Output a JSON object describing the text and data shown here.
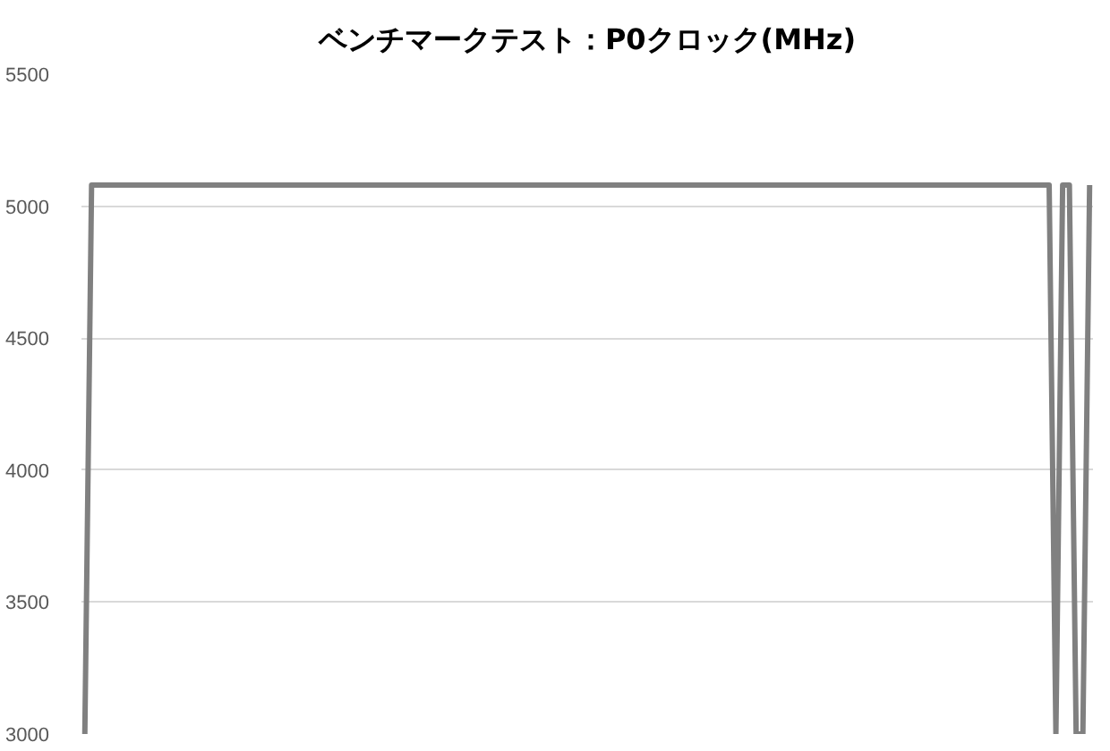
{
  "chart_data": {
    "type": "line",
    "title": "ベンチマークテスト：P0クロック(MHz)",
    "categories": [
      null,
      null,
      null,
      null,
      null,
      null,
      null,
      null,
      null,
      null,
      null,
      null,
      null,
      null,
      null,
      null,
      null,
      null,
      null,
      null,
      null,
      null,
      null,
      null,
      null,
      null,
      null,
      null,
      null,
      null,
      null,
      null,
      null,
      null,
      null,
      null,
      null,
      null,
      null,
      null,
      null,
      null,
      null,
      null,
      null,
      null,
      null,
      null,
      null,
      null,
      null,
      null,
      null,
      null,
      null,
      null,
      null,
      null,
      null,
      null,
      null,
      null,
      null,
      null,
      null,
      null,
      null,
      null,
      null,
      null,
      null,
      null,
      null,
      null,
      null,
      null,
      null,
      null,
      null,
      null,
      null,
      null,
      null,
      null,
      null,
      null,
      null,
      null,
      null,
      null,
      null,
      null,
      null,
      null,
      null,
      null,
      null,
      null,
      null,
      null,
      null,
      null,
      null,
      null,
      null,
      null,
      null,
      null,
      null,
      null,
      null,
      null,
      null,
      null,
      null,
      null,
      null,
      null,
      null,
      null,
      null,
      null,
      null,
      null,
      null,
      null,
      null,
      null,
      null,
      null,
      null,
      null,
      null,
      null,
      null,
      null,
      null,
      null,
      null,
      null,
      null,
      null,
      null,
      null,
      null,
      null,
      null,
      null,
      null,
      null
    ],
    "values": [
      3000,
      5080,
      5080,
      5080,
      5080,
      5080,
      5080,
      5080,
      5080,
      5080,
      5080,
      5080,
      5080,
      5080,
      5080,
      5080,
      5080,
      5080,
      5080,
      5080,
      5080,
      5080,
      5080,
      5080,
      5080,
      5080,
      5080,
      5080,
      5080,
      5080,
      5080,
      5080,
      5080,
      5080,
      5080,
      5080,
      5080,
      5080,
      5080,
      5080,
      5080,
      5080,
      5080,
      5080,
      5080,
      5080,
      5080,
      5080,
      5080,
      5080,
      5080,
      5080,
      5080,
      5080,
      5080,
      5080,
      5080,
      5080,
      5080,
      5080,
      5080,
      5080,
      5080,
      5080,
      5080,
      5080,
      5080,
      5080,
      5080,
      5080,
      5080,
      5080,
      5080,
      5080,
      5080,
      5080,
      5080,
      5080,
      5080,
      5080,
      5080,
      5080,
      5080,
      5080,
      5080,
      5080,
      5080,
      5080,
      5080,
      5080,
      5080,
      5080,
      5080,
      5080,
      5080,
      5080,
      5080,
      5080,
      5080,
      5080,
      5080,
      5080,
      5080,
      5080,
      5080,
      5080,
      5080,
      5080,
      5080,
      5080,
      5080,
      5080,
      5080,
      5080,
      5080,
      5080,
      5080,
      5080,
      5080,
      5080,
      5080,
      5080,
      5080,
      5080,
      5080,
      5080,
      5080,
      5080,
      5080,
      5080,
      5080,
      5080,
      5080,
      5080,
      5080,
      5080,
      5080,
      5080,
      5080,
      5080,
      5080,
      5080,
      5080,
      5080,
      3000,
      5080,
      5080,
      3000,
      3000,
      5080
    ],
    "color": "#808080",
    "ylim": [
      3000,
      5500
    ],
    "yticks": [
      3000,
      3500,
      4000,
      4500,
      5000,
      5500
    ],
    "grid": "y",
    "tick_labels": "y"
  }
}
